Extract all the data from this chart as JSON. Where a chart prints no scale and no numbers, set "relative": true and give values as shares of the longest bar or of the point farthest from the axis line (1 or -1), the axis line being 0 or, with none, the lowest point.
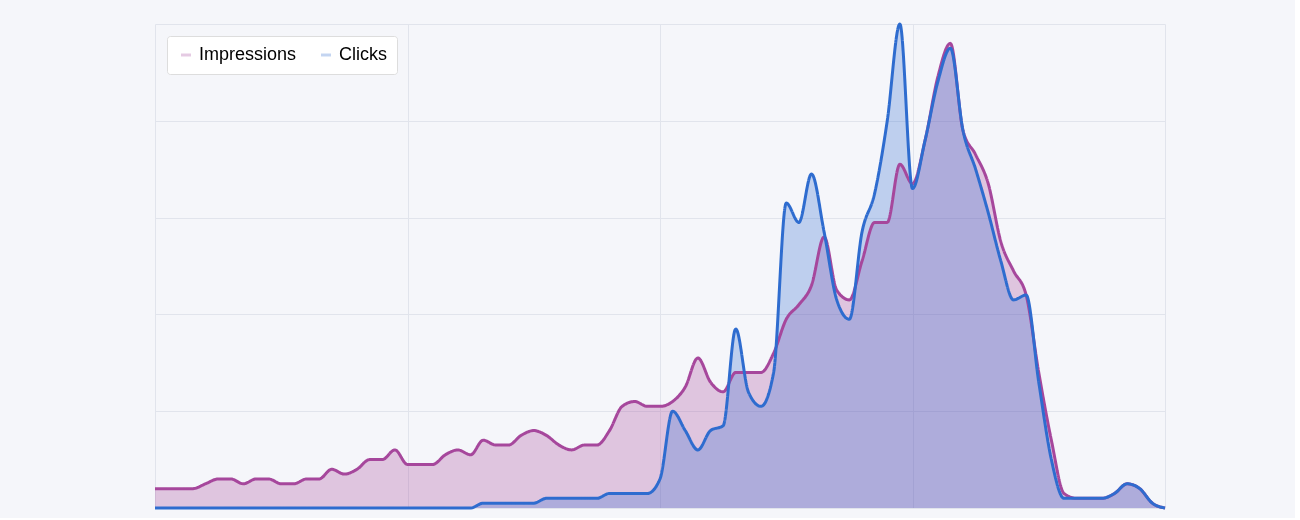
{
  "chart_data": {
    "type": "area",
    "relative": true,
    "grid": true,
    "legend": "top left",
    "tick_labels": false,
    "line_style": "solid",
    "marker": "none",
    "categories": [
      null,
      null,
      null,
      null,
      null,
      null,
      null,
      null,
      null,
      null,
      null,
      null,
      null,
      null,
      null,
      null,
      null,
      null,
      null,
      null,
      null,
      null,
      null,
      null,
      null,
      null,
      null,
      null,
      null,
      null,
      null,
      null,
      null,
      null,
      null,
      null,
      null,
      null,
      null,
      null,
      null,
      null,
      null,
      null,
      null,
      null,
      null,
      null,
      null,
      null,
      null,
      null,
      null,
      null,
      null,
      null,
      null,
      null,
      null,
      null,
      null,
      null,
      null,
      null,
      null,
      null,
      null,
      null,
      null,
      null,
      null,
      null,
      null,
      null,
      null,
      null,
      null,
      null,
      null,
      null,
      null
    ],
    "series": [
      {
        "name": "Impressions",
        "color": "#a6479c",
        "values": [
          0.04,
          0.04,
          0.04,
          0.04,
          0.05,
          0.06,
          0.06,
          0.05,
          0.06,
          0.06,
          0.05,
          0.05,
          0.06,
          0.06,
          0.08,
          0.07,
          0.08,
          0.1,
          0.1,
          0.12,
          0.09,
          0.09,
          0.09,
          0.11,
          0.12,
          0.11,
          0.14,
          0.13,
          0.13,
          0.15,
          0.16,
          0.15,
          0.13,
          0.12,
          0.13,
          0.13,
          0.16,
          0.21,
          0.22,
          0.21,
          0.21,
          0.22,
          0.25,
          0.31,
          0.26,
          0.24,
          0.28,
          0.28,
          0.28,
          0.32,
          0.39,
          0.42,
          0.46,
          0.56,
          0.45,
          0.43,
          0.51,
          0.59,
          0.59,
          0.71,
          0.67,
          0.76,
          0.89,
          0.96,
          0.78,
          0.73,
          0.67,
          0.55,
          0.49,
          0.44,
          0.28,
          0.14,
          0.03,
          0.02,
          0.02,
          0.02,
          0.03,
          0.05,
          0.04,
          0.01,
          0.0
        ]
      },
      {
        "name": "Clicks",
        "color": "#2e6ccf",
        "values": [
          0,
          0,
          0,
          0,
          0,
          0,
          0,
          0,
          0,
          0,
          0,
          0,
          0,
          0,
          0,
          0,
          0,
          0,
          0,
          0,
          0,
          0,
          0,
          0,
          0.0,
          0.0,
          0.01,
          0.01,
          0.01,
          0.01,
          0.01,
          0.02,
          0.02,
          0.02,
          0.02,
          0.02,
          0.03,
          0.03,
          0.03,
          0.03,
          0.06,
          0.2,
          0.16,
          0.12,
          0.16,
          0.17,
          0.37,
          0.24,
          0.21,
          0.28,
          0.63,
          0.59,
          0.69,
          0.57,
          0.43,
          0.39,
          0.57,
          0.65,
          0.8,
          1.0,
          0.66,
          0.76,
          0.88,
          0.95,
          0.78,
          0.7,
          0.61,
          0.51,
          0.43,
          0.44,
          0.26,
          0.1,
          0.02,
          0.02,
          0.02,
          0.02,
          0.03,
          0.05,
          0.04,
          0.01,
          0.0
        ]
      }
    ]
  }
}
